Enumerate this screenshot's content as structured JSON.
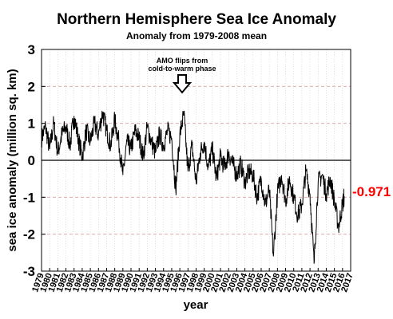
{
  "chart_data": {
    "type": "line",
    "title": "Northern Hemisphere Sea Ice Anomaly",
    "subtitle": "Anomaly from 1979-2008 mean",
    "xlabel": "year",
    "ylabel": "sea ice anomaly (million sq. km)",
    "xlim": [
      1979,
      2017
    ],
    "ylim": [
      -3,
      3
    ],
    "y_ticks": [
      "3",
      "2",
      "1",
      "0",
      "-1",
      "-2",
      "-3"
    ],
    "x_ticks": [
      "1979",
      "1980",
      "1981",
      "1982",
      "1983",
      "1984",
      "1985",
      "1986",
      "1987",
      "1988",
      "1989",
      "1990",
      "1991",
      "1992",
      "1993",
      "1994",
      "1995",
      "1996",
      "1997",
      "1998",
      "1999",
      "2000",
      "2001",
      "2002",
      "2003",
      "2004",
      "2005",
      "2006",
      "2007",
      "2008",
      "2009",
      "2010",
      "2011",
      "2012",
      "2013",
      "2014",
      "2015",
      "2016",
      "2017"
    ],
    "grid": true,
    "line_color": "#000000",
    "zero_line_color": "#000000",
    "annotation": {
      "lines": [
        "AMO flips from",
        "cold-to-warm phase"
      ],
      "x": 1996,
      "arrow": "down"
    },
    "callout": {
      "text": "-0.971",
      "x": 2016.2,
      "y": -0.971,
      "color": "#ff0000"
    },
    "x": [
      1979.0,
      1979.5,
      1980.0,
      1980.5,
      1981.0,
      1981.5,
      1982.0,
      1982.5,
      1983.0,
      1983.5,
      1984.0,
      1984.5,
      1985.0,
      1985.5,
      1986.0,
      1986.5,
      1987.0,
      1987.5,
      1988.0,
      1988.5,
      1989.0,
      1989.5,
      1990.0,
      1990.5,
      1991.0,
      1991.5,
      1992.0,
      1992.5,
      1993.0,
      1993.5,
      1994.0,
      1994.5,
      1995.0,
      1995.5,
      1996.0,
      1996.5,
      1997.0,
      1997.5,
      1998.0,
      1998.5,
      1999.0,
      1999.5,
      2000.0,
      2000.5,
      2001.0,
      2001.5,
      2002.0,
      2002.5,
      2003.0,
      2003.5,
      2004.0,
      2004.5,
      2005.0,
      2005.5,
      2006.0,
      2006.5,
      2007.0,
      2007.5,
      2008.0,
      2008.5,
      2009.0,
      2009.5,
      2010.0,
      2010.5,
      2011.0,
      2011.5,
      2012.0,
      2012.5,
      2013.0,
      2013.5,
      2014.0,
      2014.5,
      2015.0,
      2015.5,
      2016.0,
      2016.2
    ],
    "y": [
      0.6,
      0.9,
      0.3,
      1.0,
      0.2,
      0.7,
      0.9,
      0.4,
      1.2,
      0.6,
      0.1,
      0.8,
      0.5,
      1.0,
      0.7,
      1.3,
      0.8,
      0.4,
      1.1,
      0.5,
      -0.4,
      0.5,
      0.3,
      0.8,
      0.6,
      0.1,
      0.9,
      0.5,
      0.2,
      0.7,
      0.4,
      0.8,
      0.6,
      -0.8,
      0.7,
      1.25,
      -0.3,
      0.4,
      -0.6,
      0.2,
      0.5,
      -0.2,
      0.3,
      -0.5,
      0.1,
      -0.2,
      0.2,
      -0.1,
      -0.4,
      -0.1,
      -0.6,
      -0.3,
      -0.4,
      -1.0,
      -0.5,
      -1.2,
      -0.8,
      -2.6,
      -0.9,
      -0.4,
      -1.1,
      -0.5,
      -1.0,
      -1.5,
      -1.2,
      -0.3,
      -0.9,
      -2.8,
      -0.6,
      -0.4,
      -0.9,
      -0.5,
      -1.1,
      -1.8,
      -1.2,
      -0.971
    ]
  }
}
